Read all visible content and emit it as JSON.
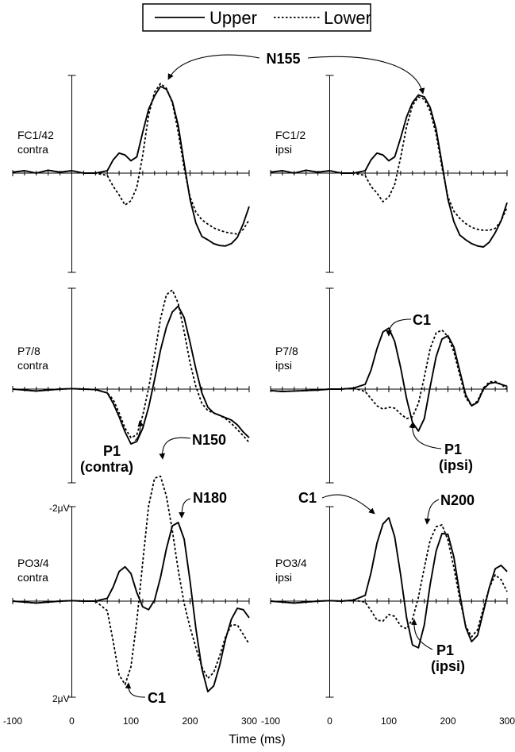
{
  "legend": {
    "entries": [
      {
        "label": "Upper",
        "style": "solid"
      },
      {
        "label": "Lower",
        "style": "dotted"
      }
    ]
  },
  "chart_data": {
    "type": "line",
    "xlabel": "Time (ms)",
    "x_ticks": [
      "-100",
      "0",
      "100",
      "200",
      "300"
    ],
    "xlim": [
      -100,
      300
    ],
    "voltage_scale": {
      "top": "-2μV",
      "bottom": "2μV"
    },
    "y_note": "negative up; values in μV",
    "series_names": [
      "Upper",
      "Lower"
    ],
    "panels": [
      {
        "id": "fc-contra",
        "label_line1": "FC1/42",
        "label_line2": "contra",
        "series": [
          {
            "name": "Upper",
            "x": [
              -100,
              -80,
              -60,
              -40,
              -20,
              0,
              20,
              40,
              60,
              70,
              80,
              90,
              100,
              110,
              120,
              130,
              140,
              150,
              160,
              170,
              180,
              190,
              200,
              210,
              220,
              230,
              240,
              250,
              260,
              270,
              280,
              290,
              300
            ],
            "y": [
              0.02,
              0.05,
              0.0,
              0.06,
              0.02,
              0.05,
              0.0,
              0.0,
              0.05,
              0.28,
              0.42,
              0.38,
              0.26,
              0.34,
              0.86,
              1.34,
              1.62,
              1.82,
              1.76,
              1.5,
              1.0,
              0.2,
              -0.55,
              -1.05,
              -1.33,
              -1.4,
              -1.48,
              -1.52,
              -1.53,
              -1.48,
              -1.35,
              -1.06,
              -0.7
            ]
          },
          {
            "name": "Lower",
            "x": [
              -100,
              -80,
              -60,
              -40,
              -20,
              0,
              20,
              40,
              60,
              70,
              80,
              90,
              100,
              110,
              120,
              130,
              140,
              150,
              160,
              170,
              180,
              190,
              200,
              210,
              220,
              230,
              240,
              250,
              260,
              270,
              280,
              290,
              300
            ],
            "y": [
              0.02,
              0.05,
              0.0,
              0.06,
              0.02,
              0.05,
              0.0,
              0.0,
              -0.05,
              -0.28,
              -0.46,
              -0.67,
              -0.58,
              -0.3,
              0.38,
              1.22,
              1.7,
              1.88,
              1.78,
              1.48,
              0.86,
              0.1,
              -0.5,
              -0.82,
              -0.98,
              -1.07,
              -1.15,
              -1.2,
              -1.24,
              -1.26,
              -1.28,
              -1.18,
              -0.98
            ]
          }
        ]
      },
      {
        "id": "fc-ipsi",
        "label_line1": "FC1/2",
        "label_line2": "ipsi",
        "series": [
          {
            "name": "Upper",
            "x": [
              -100,
              -80,
              -60,
              -40,
              -20,
              0,
              20,
              40,
              60,
              70,
              80,
              90,
              100,
              110,
              120,
              130,
              140,
              150,
              160,
              170,
              180,
              190,
              200,
              210,
              220,
              230,
              240,
              250,
              260,
              270,
              280,
              290,
              300
            ],
            "y": [
              0.02,
              0.05,
              0.0,
              0.06,
              0.02,
              0.05,
              0.0,
              0.0,
              0.05,
              0.28,
              0.42,
              0.38,
              0.26,
              0.34,
              0.74,
              1.18,
              1.48,
              1.64,
              1.6,
              1.38,
              0.92,
              0.2,
              -0.55,
              -1.02,
              -1.3,
              -1.4,
              -1.48,
              -1.53,
              -1.55,
              -1.45,
              -1.25,
              -1.0,
              -0.62
            ]
          },
          {
            "name": "Lower",
            "x": [
              -100,
              -80,
              -60,
              -40,
              -20,
              0,
              20,
              40,
              60,
              70,
              80,
              90,
              100,
              110,
              120,
              130,
              140,
              150,
              160,
              170,
              180,
              190,
              200,
              210,
              220,
              230,
              240,
              250,
              260,
              270,
              280,
              290,
              300
            ],
            "y": [
              0.02,
              0.05,
              0.0,
              0.06,
              0.02,
              0.05,
              0.0,
              0.0,
              -0.05,
              -0.28,
              -0.42,
              -0.6,
              -0.5,
              -0.24,
              0.33,
              0.98,
              1.42,
              1.6,
              1.55,
              1.3,
              0.82,
              0.12,
              -0.5,
              -0.8,
              -0.95,
              -1.06,
              -1.14,
              -1.18,
              -1.2,
              -1.2,
              -1.16,
              -1.0,
              -0.72
            ]
          }
        ]
      },
      {
        "id": "p78-contra",
        "label_line1": "P7/8",
        "label_line2": "contra",
        "series": [
          {
            "name": "Upper",
            "x": [
              -100,
              -80,
              -60,
              -40,
              -20,
              0,
              20,
              40,
              60,
              70,
              80,
              90,
              100,
              110,
              120,
              130,
              140,
              150,
              160,
              170,
              180,
              190,
              200,
              210,
              220,
              230,
              240,
              250,
              260,
              270,
              280,
              290,
              300
            ],
            "y": [
              0.0,
              -0.02,
              -0.04,
              -0.02,
              0.0,
              0.01,
              0.0,
              -0.01,
              -0.08,
              -0.3,
              -0.58,
              -0.9,
              -1.15,
              -1.1,
              -0.82,
              -0.38,
              0.2,
              0.82,
              1.3,
              1.62,
              1.74,
              1.5,
              0.98,
              0.42,
              -0.08,
              -0.38,
              -0.5,
              -0.55,
              -0.6,
              -0.65,
              -0.75,
              -0.9,
              -1.02
            ]
          },
          {
            "name": "Lower",
            "x": [
              -100,
              -80,
              -60,
              -40,
              -20,
              0,
              20,
              40,
              60,
              70,
              80,
              90,
              100,
              110,
              120,
              130,
              140,
              150,
              160,
              170,
              180,
              190,
              200,
              210,
              220,
              230,
              240,
              250,
              260,
              270,
              280,
              290,
              300
            ],
            "y": [
              0.0,
              -0.02,
              -0.04,
              -0.02,
              0.0,
              0.01,
              0.0,
              -0.01,
              -0.08,
              -0.22,
              -0.5,
              -0.82,
              -1.02,
              -0.96,
              -0.55,
              0.02,
              0.72,
              1.48,
              1.98,
              2.08,
              1.8,
              1.2,
              0.55,
              0.05,
              -0.3,
              -0.45,
              -0.5,
              -0.55,
              -0.62,
              -0.72,
              -0.85,
              -0.98,
              -1.12
            ]
          }
        ]
      },
      {
        "id": "p78-ipsi",
        "label_line1": "P7/8",
        "label_line2": "ipsi",
        "series": [
          {
            "name": "Upper",
            "x": [
              -100,
              -80,
              -60,
              -40,
              -20,
              0,
              20,
              40,
              60,
              70,
              80,
              90,
              100,
              110,
              120,
              130,
              140,
              150,
              160,
              170,
              180,
              190,
              200,
              210,
              220,
              230,
              240,
              250,
              260,
              270,
              280,
              290,
              300
            ],
            "y": [
              -0.03,
              -0.05,
              -0.04,
              -0.03,
              -0.02,
              0.0,
              0.0,
              0.02,
              0.1,
              0.4,
              0.85,
              1.2,
              1.28,
              1.0,
              0.45,
              -0.2,
              -0.7,
              -0.88,
              -0.62,
              0.05,
              0.68,
              1.05,
              1.12,
              0.88,
              0.38,
              -0.12,
              -0.35,
              -0.28,
              0.0,
              0.12,
              0.14,
              0.1,
              0.06
            ]
          },
          {
            "name": "Lower",
            "x": [
              -100,
              -80,
              -60,
              -40,
              -20,
              0,
              20,
              40,
              60,
              70,
              80,
              90,
              100,
              110,
              120,
              130,
              140,
              150,
              160,
              170,
              180,
              190,
              200,
              210,
              220,
              230,
              240,
              250,
              260,
              270,
              280,
              290,
              300
            ],
            "y": [
              -0.03,
              -0.05,
              -0.04,
              -0.03,
              -0.02,
              0.0,
              0.0,
              0.02,
              -0.05,
              -0.2,
              -0.35,
              -0.42,
              -0.38,
              -0.4,
              -0.52,
              -0.62,
              -0.58,
              -0.3,
              0.25,
              0.85,
              1.18,
              1.24,
              1.1,
              0.78,
              0.3,
              -0.18,
              -0.35,
              -0.25,
              0.02,
              0.15,
              0.16,
              0.1,
              0.0
            ]
          }
        ]
      },
      {
        "id": "po34-contra",
        "label_line1": "PO3/4",
        "label_line2": "contra",
        "series": [
          {
            "name": "Upper",
            "x": [
              -100,
              -80,
              -60,
              -40,
              -20,
              0,
              20,
              40,
              60,
              70,
              80,
              90,
              100,
              110,
              120,
              130,
              140,
              150,
              160,
              170,
              180,
              190,
              200,
              210,
              220,
              230,
              240,
              250,
              260,
              270,
              280,
              290,
              300
            ],
            "y": [
              0.0,
              -0.02,
              -0.04,
              -0.02,
              0.0,
              0.01,
              0.0,
              0.0,
              0.06,
              0.3,
              0.62,
              0.72,
              0.58,
              0.18,
              -0.12,
              -0.18,
              0.02,
              0.5,
              1.1,
              1.58,
              1.65,
              1.3,
              0.42,
              -0.58,
              -1.42,
              -1.9,
              -1.78,
              -1.35,
              -0.8,
              -0.38,
              -0.15,
              -0.18,
              -0.35
            ]
          },
          {
            "name": "Lower",
            "x": [
              -100,
              -80,
              -60,
              -40,
              -20,
              0,
              20,
              40,
              60,
              70,
              80,
              90,
              100,
              110,
              120,
              130,
              140,
              150,
              160,
              170,
              180,
              190,
              200,
              210,
              220,
              230,
              240,
              250,
              260,
              270,
              280,
              290,
              300
            ],
            "y": [
              0.0,
              -0.02,
              -0.04,
              -0.02,
              0.0,
              0.01,
              0.0,
              0.0,
              -0.2,
              -0.85,
              -1.55,
              -1.75,
              -1.38,
              -0.42,
              0.82,
              2.0,
              2.58,
              2.62,
              2.2,
              1.48,
              0.65,
              -0.05,
              -0.55,
              -0.98,
              -1.38,
              -1.62,
              -1.5,
              -1.15,
              -0.75,
              -0.5,
              -0.5,
              -0.7,
              -0.9
            ]
          }
        ]
      },
      {
        "id": "po34-ipsi",
        "label_line1": "PO3/4",
        "label_line2": "ipsi",
        "series": [
          {
            "name": "Upper",
            "x": [
              -100,
              -80,
              -60,
              -40,
              -20,
              0,
              20,
              40,
              60,
              70,
              80,
              90,
              100,
              110,
              120,
              130,
              140,
              150,
              160,
              170,
              180,
              190,
              200,
              210,
              220,
              230,
              240,
              250,
              260,
              270,
              280,
              290,
              300
            ],
            "y": [
              0.0,
              -0.02,
              -0.04,
              -0.02,
              0.0,
              0.01,
              0.0,
              0.02,
              0.12,
              0.6,
              1.22,
              1.62,
              1.75,
              1.35,
              0.55,
              -0.35,
              -0.92,
              -0.98,
              -0.5,
              0.35,
              1.05,
              1.42,
              1.4,
              0.92,
              0.15,
              -0.55,
              -0.85,
              -0.72,
              -0.22,
              0.28,
              0.68,
              0.75,
              0.62
            ]
          },
          {
            "name": "Lower",
            "x": [
              -100,
              -80,
              -60,
              -40,
              -20,
              0,
              20,
              40,
              60,
              70,
              80,
              90,
              100,
              110,
              120,
              130,
              140,
              150,
              160,
              170,
              180,
              190,
              200,
              210,
              220,
              230,
              240,
              250,
              260,
              270,
              280,
              290,
              300
            ],
            "y": [
              0.0,
              -0.02,
              -0.04,
              -0.02,
              0.0,
              0.01,
              0.0,
              0.02,
              -0.02,
              -0.2,
              -0.4,
              -0.42,
              -0.28,
              -0.32,
              -0.52,
              -0.58,
              -0.38,
              0.08,
              0.7,
              1.28,
              1.56,
              1.6,
              1.28,
              0.7,
              0.05,
              -0.52,
              -0.75,
              -0.6,
              -0.15,
              0.28,
              0.55,
              0.45,
              0.2
            ]
          }
        ]
      }
    ],
    "annotations": [
      {
        "id": "n155",
        "text": "N155"
      },
      {
        "id": "c1-p78",
        "text": "C1"
      },
      {
        "id": "p1-contra-1",
        "text": "P1"
      },
      {
        "id": "p1-contra-2",
        "text": "(contra)"
      },
      {
        "id": "p1-ipsi-a1",
        "text": "P1"
      },
      {
        "id": "p1-ipsi-a2",
        "text": "(ipsi)"
      },
      {
        "id": "n150",
        "text": "N150"
      },
      {
        "id": "n180",
        "text": "N180"
      },
      {
        "id": "c1-po-contra",
        "text": "C1"
      },
      {
        "id": "c1-po-ipsi",
        "text": "C1"
      },
      {
        "id": "n200",
        "text": "N200"
      },
      {
        "id": "p1-ipsi-b1",
        "text": "P1"
      },
      {
        "id": "p1-ipsi-b2",
        "text": "(ipsi)"
      }
    ]
  }
}
